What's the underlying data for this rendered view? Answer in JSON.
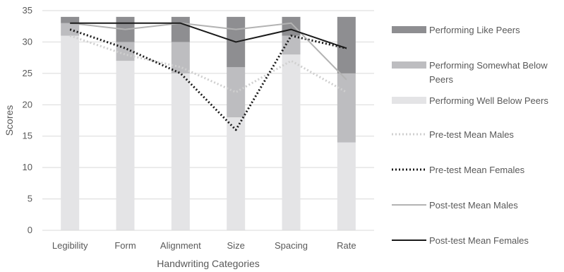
{
  "chart_data": {
    "type": "bar",
    "subtype": "stacked-bar-with-lines",
    "title": "",
    "xlabel": "Handwriting Categories",
    "ylabel": "Scores",
    "ylim": [
      0,
      35
    ],
    "yticks": [
      0,
      5,
      10,
      15,
      20,
      25,
      30,
      35
    ],
    "grid": true,
    "legend_position": "right",
    "categories": [
      "Legibility",
      "Form",
      "Alignment",
      "Size",
      "Spacing",
      "Rate"
    ],
    "stacked_bars": [
      {
        "name": "Performing Well Below Peers",
        "color": "#e4e4e6",
        "values": [
          31,
          27,
          25,
          18,
          28,
          14
        ]
      },
      {
        "name": "Performing Somewhat Below Peers",
        "color": "#bdbdc0",
        "values": [
          2,
          3,
          5,
          8,
          3,
          11
        ]
      },
      {
        "name": "Performing Like Peers",
        "color": "#8e8e91",
        "values": [
          1,
          4,
          4,
          8,
          3,
          9
        ]
      }
    ],
    "lines": [
      {
        "name": "Pre-test Mean Males",
        "color": "#cfcfcf",
        "style": "dotted",
        "values": [
          31,
          28,
          26,
          22,
          27,
          22
        ]
      },
      {
        "name": "Pre-test Mean Females",
        "color": "#1a1a1a",
        "style": "dotted",
        "values": [
          32,
          29,
          25,
          16,
          31,
          29
        ]
      },
      {
        "name": "Post-test Mean Males",
        "color": "#b3b3b3",
        "style": "solid",
        "values": [
          33,
          32,
          33,
          32,
          33,
          24
        ]
      },
      {
        "name": "Post-test Mean Females",
        "color": "#1a1a1a",
        "style": "solid",
        "values": [
          33,
          33,
          33,
          30,
          32,
          29
        ]
      }
    ]
  }
}
